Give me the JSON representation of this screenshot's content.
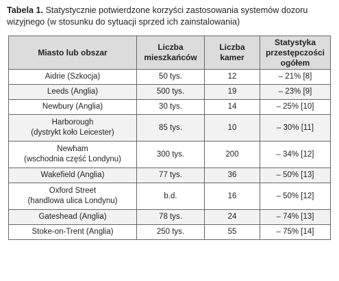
{
  "caption": {
    "label": "Tabela 1.",
    "text": " Statystycznie potwierdzone korzyści zastosowania systemów dozoru wizyjnego (w stosunku do sytuacji sprzed ich zainstalowania)"
  },
  "table": {
    "headers": [
      "Miasto lub obszar",
      "Liczba mieszkańców",
      "Liczba kamer",
      "Statystyka przestępczości ogółem"
    ],
    "rows": [
      {
        "city": "Aidrie (Szkocja)",
        "subtitle": "",
        "population": "50 tys.",
        "cameras": "12",
        "crime": "– 21% [8]"
      },
      {
        "city": "Leeds (Anglia)",
        "subtitle": "",
        "population": "500 tys.",
        "cameras": "19",
        "crime": "– 23% [9]"
      },
      {
        "city": "Newbury (Anglia)",
        "subtitle": "",
        "population": "30 tys.",
        "cameras": "14",
        "crime": "– 25% [10]"
      },
      {
        "city": "Harborough",
        "subtitle": "(dystrykt koło Leicester)",
        "population": "85 tys.",
        "cameras": "10",
        "crime": "– 30% [11]"
      },
      {
        "city": "Newham",
        "subtitle": "(wschodnia część Londynu)",
        "population": "300 tys.",
        "cameras": "200",
        "crime": "– 34% [12]"
      },
      {
        "city": "Wakefield (Anglia)",
        "subtitle": "",
        "population": "77 tys.",
        "cameras": "36",
        "crime": "– 50% [13]"
      },
      {
        "city": "Oxford Street",
        "subtitle": "(handlowa ulica Londynu)",
        "population": "b.d.",
        "cameras": "16",
        "crime": "– 50% [12]"
      },
      {
        "city": "Gateshead (Anglia)",
        "subtitle": "",
        "population": "78 tys.",
        "cameras": "24",
        "crime": "– 74% [13]"
      },
      {
        "city": "Stoke-on-Trent (Anglia)",
        "subtitle": "",
        "population": "250 tys.",
        "cameras": "55",
        "crime": "– 75% [14]"
      }
    ]
  }
}
